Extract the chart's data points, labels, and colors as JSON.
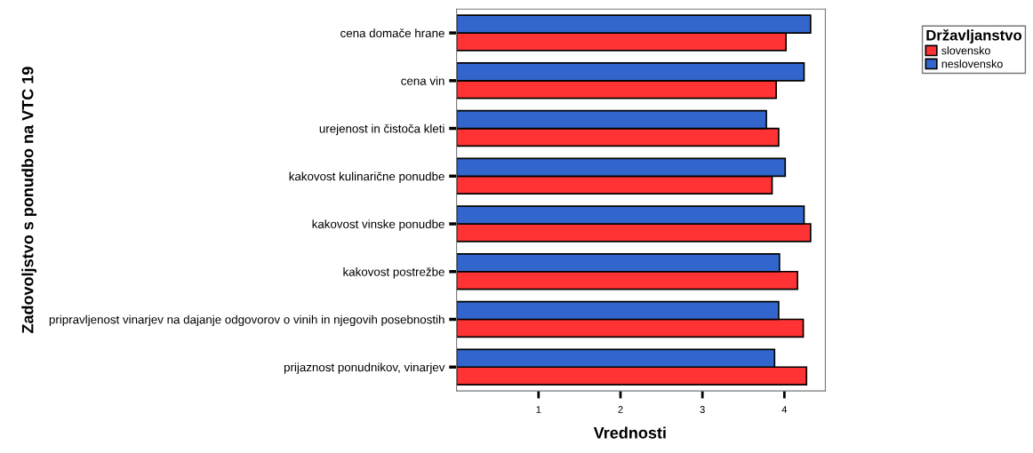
{
  "chart_data": {
    "type": "bar",
    "orientation": "horizontal",
    "ylabel": "Zadovoljstvo s ponudbo na VTC 19",
    "xlabel": "Vrednosti",
    "legend_title": "Državljanstvo",
    "categories": [
      "cena domače hrane",
      "cena vin",
      "urejenost in čistoča kleti",
      "kakovost kulinarične ponudbe",
      "kakovost vinske ponudbe",
      "kakovost postrežbe",
      "pripravljenost vinarjev na dajanje odgovorov o vinih in njegovih posebnostih",
      "prijaznost ponudnikov, vinarjev"
    ],
    "series": [
      {
        "name": "slovensko",
        "color": "#ff3333",
        "values": [
          4.02,
          3.9,
          3.93,
          3.85,
          4.32,
          4.16,
          4.23,
          4.27
        ]
      },
      {
        "name": "neslovensko",
        "color": "#3366cc",
        "values": [
          4.32,
          4.24,
          3.78,
          4.01,
          4.24,
          3.94,
          3.93,
          3.88
        ]
      }
    ],
    "xlim": [
      0,
      4.5
    ],
    "xticks": [
      1,
      2,
      3,
      4
    ],
    "grid": false,
    "legend": "top right"
  }
}
